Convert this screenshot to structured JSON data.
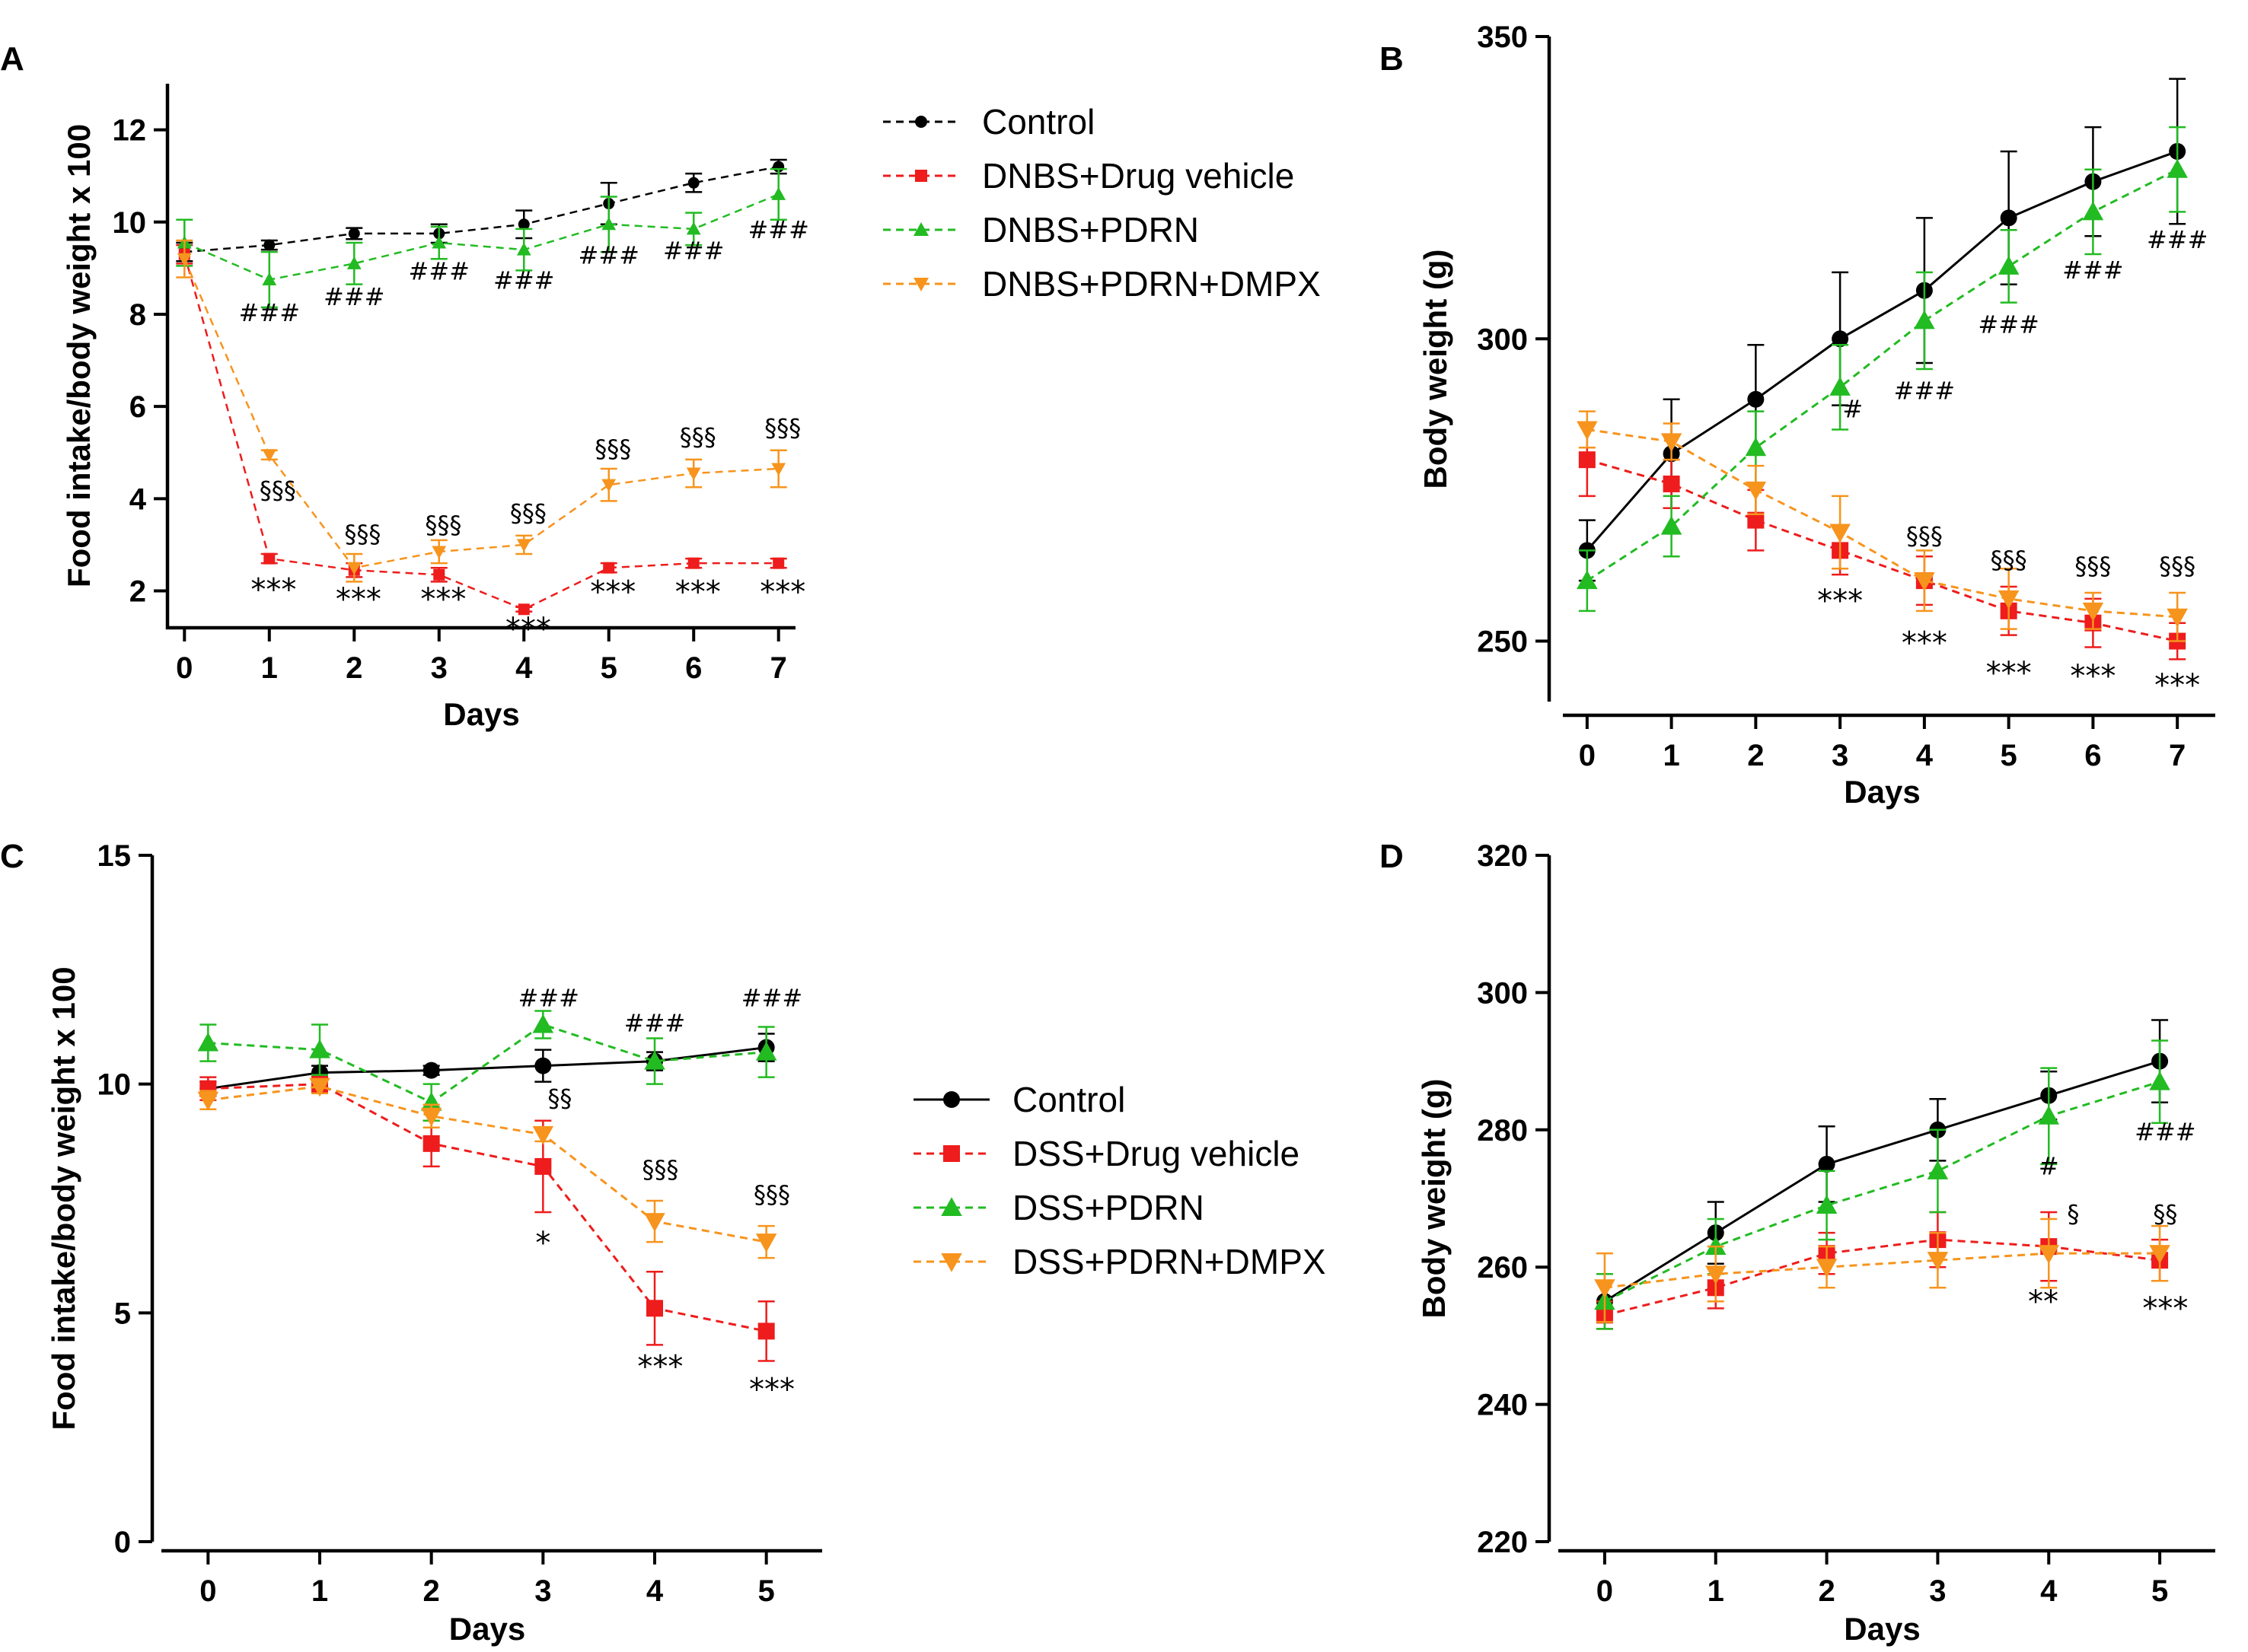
{
  "colors": {
    "control": "#000000",
    "vehicle": "#ee1c1c",
    "pdrn": "#22bb22",
    "dmpx": "#f7941d"
  },
  "chart_data": [
    {
      "panel": "A",
      "type": "line",
      "xlabel": "Days",
      "ylabel": "Food intake/body weight x 100",
      "xlim": [
        -0.2,
        7.2
      ],
      "ylim": [
        1.2,
        13
      ],
      "xticks": [
        0,
        1,
        2,
        3,
        4,
        5,
        6,
        7
      ],
      "yticks": [
        2,
        4,
        6,
        8,
        10,
        12
      ],
      "legend": {
        "position": "top-right"
      },
      "series": [
        {
          "name": "Control",
          "color": "#000000",
          "dash": true,
          "marker": "circle",
          "size": "small",
          "x": [
            0,
            1,
            2,
            3,
            4,
            5,
            6,
            7
          ],
          "y": [
            9.35,
            9.5,
            9.75,
            9.75,
            9.95,
            10.4,
            10.85,
            11.2
          ],
          "err": [
            0.2,
            0.1,
            0.12,
            0.2,
            0.3,
            0.45,
            0.2,
            0.15
          ]
        },
        {
          "name": "DNBS+Drug vehicle",
          "color": "#ee1c1c",
          "dash": true,
          "marker": "square",
          "size": "small",
          "x": [
            0,
            1,
            2,
            3,
            4,
            5,
            6,
            7
          ],
          "y": [
            9.3,
            2.7,
            2.45,
            2.35,
            1.6,
            2.5,
            2.6,
            2.6
          ],
          "err": [
            0.2,
            0.1,
            0.15,
            0.15,
            0.05,
            0.1,
            0.1,
            0.1
          ]
        },
        {
          "name": "DNBS+PDRN",
          "color": "#22bb22",
          "dash": true,
          "marker": "triangle-up",
          "size": "small",
          "x": [
            0,
            1,
            2,
            3,
            4,
            5,
            6,
            7
          ],
          "y": [
            9.55,
            8.75,
            9.1,
            9.55,
            9.4,
            9.95,
            9.85,
            10.6
          ],
          "err": [
            0.5,
            0.6,
            0.45,
            0.35,
            0.45,
            0.6,
            0.35,
            0.55
          ]
        },
        {
          "name": "DNBS+PDRN+DMPX",
          "color": "#f7941d",
          "dash": true,
          "marker": "triangle-down",
          "size": "small",
          "x": [
            0,
            1,
            2,
            3,
            4,
            5,
            6,
            7
          ],
          "y": [
            9.2,
            4.95,
            2.5,
            2.85,
            3.0,
            4.3,
            4.55,
            4.65
          ],
          "err": [
            0.4,
            0.1,
            0.3,
            0.25,
            0.2,
            0.35,
            0.3,
            0.4
          ]
        }
      ],
      "annotations": [
        {
          "text": "###",
          "x": 1,
          "y": 7.85,
          "size": "small"
        },
        {
          "text": "###",
          "x": 2,
          "y": 8.2,
          "size": "small"
        },
        {
          "text": "###",
          "x": 3,
          "y": 8.75,
          "size": "small"
        },
        {
          "text": "###",
          "x": 4,
          "y": 8.55,
          "size": "small"
        },
        {
          "text": "###",
          "x": 5,
          "y": 9.1,
          "size": "small"
        },
        {
          "text": "###",
          "x": 6,
          "y": 9.2,
          "size": "small"
        },
        {
          "text": "###",
          "x": 7,
          "y": 9.65,
          "size": "small"
        },
        {
          "text": "§§§",
          "x": 1.1,
          "y": 4.0,
          "size": "small"
        },
        {
          "text": "§§§",
          "x": 2.1,
          "y": 3.05,
          "size": "small"
        },
        {
          "text": "§§§",
          "x": 3.05,
          "y": 3.25,
          "size": "small"
        },
        {
          "text": "§§§",
          "x": 4.05,
          "y": 3.5,
          "size": "small"
        },
        {
          "text": "§§§",
          "x": 5.05,
          "y": 4.9,
          "size": "small"
        },
        {
          "text": "§§§",
          "x": 6.05,
          "y": 5.15,
          "size": "small"
        },
        {
          "text": "§§§",
          "x": 7.05,
          "y": 5.35,
          "size": "small"
        },
        {
          "text": "***",
          "x": 1.05,
          "y": 1.8,
          "size": "large"
        },
        {
          "text": "***",
          "x": 2.05,
          "y": 1.6,
          "size": "large"
        },
        {
          "text": "***",
          "x": 3.05,
          "y": 1.6,
          "size": "large"
        },
        {
          "text": "***",
          "x": 4.05,
          "y": 0.95,
          "size": "large"
        },
        {
          "text": "***",
          "x": 5.05,
          "y": 1.75,
          "size": "large"
        },
        {
          "text": "***",
          "x": 6.05,
          "y": 1.75,
          "size": "large"
        },
        {
          "text": "***",
          "x": 7.05,
          "y": 1.75,
          "size": "large"
        }
      ]
    },
    {
      "panel": "B",
      "type": "line",
      "xlabel": "Days",
      "ylabel": "Body weight (g)",
      "xlim": [
        -0.45,
        7.45
      ],
      "ylim": [
        240,
        350
      ],
      "xticks": [
        0,
        1,
        2,
        3,
        4,
        5,
        6,
        7
      ],
      "yticks": [
        250,
        300,
        350
      ],
      "legend": null,
      "series": [
        {
          "name": "Control",
          "color": "#000000",
          "dash": false,
          "marker": "circle",
          "size": "large",
          "x": [
            0,
            1,
            2,
            3,
            4,
            5,
            6,
            7
          ],
          "y": [
            265,
            281,
            290,
            300,
            308,
            320,
            326,
            331
          ],
          "err": [
            5,
            9,
            9,
            11,
            12,
            11,
            9,
            12
          ]
        },
        {
          "name": "DNBS+Drug vehicle",
          "color": "#ee1c1c",
          "dash": true,
          "marker": "square",
          "size": "large",
          "x": [
            0,
            1,
            2,
            3,
            4,
            5,
            6,
            7
          ],
          "y": [
            280,
            276,
            270,
            265,
            260,
            255,
            253,
            250
          ],
          "err": [
            6,
            4,
            5,
            4,
            4,
            4,
            4,
            3
          ]
        },
        {
          "name": "DNBS+PDRN",
          "color": "#22bb22",
          "dash": true,
          "marker": "triangle-up",
          "size": "large",
          "x": [
            0,
            1,
            2,
            3,
            4,
            5,
            6,
            7
          ],
          "y": [
            260,
            269,
            282,
            292,
            303,
            312,
            321,
            328
          ],
          "err": [
            5,
            5,
            6,
            7,
            8,
            6,
            7,
            7
          ]
        },
        {
          "name": "DNBS+PDRN+DMPX",
          "color": "#f7941d",
          "dash": true,
          "marker": "triangle-down",
          "size": "large",
          "x": [
            0,
            1,
            2,
            3,
            4,
            5,
            6,
            7
          ],
          "y": [
            285,
            283,
            275,
            268,
            260,
            257,
            255,
            254
          ],
          "err": [
            3,
            3,
            4,
            6,
            5,
            5,
            3,
            4
          ]
        }
      ],
      "annotations": [
        {
          "text": "#",
          "x": 3.15,
          "y": 287,
          "size": "small"
        },
        {
          "text": "###",
          "x": 4,
          "y": 290,
          "size": "small"
        },
        {
          "text": "###",
          "x": 5,
          "y": 301,
          "size": "small"
        },
        {
          "text": "###",
          "x": 6,
          "y": 310,
          "size": "small"
        },
        {
          "text": "###",
          "x": 7,
          "y": 315,
          "size": "small"
        },
        {
          "text": "§§§",
          "x": 4,
          "y": 266,
          "size": "small"
        },
        {
          "text": "§§§",
          "x": 5,
          "y": 262,
          "size": "small"
        },
        {
          "text": "§§§",
          "x": 6,
          "y": 261,
          "size": "small"
        },
        {
          "text": "§§§",
          "x": 7,
          "y": 261,
          "size": "small"
        },
        {
          "text": "***",
          "x": 3,
          "y": 255,
          "size": "large"
        },
        {
          "text": "***",
          "x": 4,
          "y": 248,
          "size": "large"
        },
        {
          "text": "***",
          "x": 5,
          "y": 243,
          "size": "large"
        },
        {
          "text": "***",
          "x": 6,
          "y": 242.5,
          "size": "large"
        },
        {
          "text": "***",
          "x": 7,
          "y": 241,
          "size": "large"
        }
      ]
    },
    {
      "panel": "C",
      "type": "line",
      "xlabel": "Days",
      "ylabel": "Food intake/body weight x 100",
      "xlim": [
        -0.5,
        5.5
      ],
      "ylim": [
        0,
        15
      ],
      "xticks": [
        0,
        1,
        2,
        3,
        4,
        5
      ],
      "yticks": [
        0,
        5,
        10,
        15
      ],
      "legend": {
        "position": "right"
      },
      "series": [
        {
          "name": "Control",
          "color": "#000000",
          "dash": false,
          "marker": "circle",
          "size": "large",
          "x": [
            0,
            1,
            2,
            3,
            4,
            5
          ],
          "y": [
            9.9,
            10.25,
            10.3,
            10.4,
            10.5,
            10.8
          ],
          "err": [
            0.15,
            0.15,
            0.1,
            0.35,
            0.2,
            0.3
          ]
        },
        {
          "name": "DSS+Drug vehicle",
          "color": "#ee1c1c",
          "dash": true,
          "marker": "square",
          "size": "large",
          "x": [
            0,
            1,
            2,
            3,
            4,
            5
          ],
          "y": [
            9.9,
            10.0,
            8.7,
            8.2,
            5.1,
            4.6
          ],
          "err": [
            0.25,
            0.15,
            0.5,
            1.0,
            0.8,
            0.65
          ]
        },
        {
          "name": "DSS+PDRN",
          "color": "#22bb22",
          "dash": true,
          "marker": "triangle-up",
          "size": "large",
          "x": [
            0,
            1,
            2,
            3,
            4,
            5
          ],
          "y": [
            10.9,
            10.75,
            9.6,
            11.3,
            10.5,
            10.7
          ],
          "err": [
            0.4,
            0.55,
            0.4,
            0.3,
            0.5,
            0.55
          ]
        },
        {
          "name": "DSS+PDRN+DMPX",
          "color": "#f7941d",
          "dash": true,
          "marker": "triangle-down",
          "size": "large",
          "x": [
            0,
            1,
            2,
            3,
            4,
            5
          ],
          "y": [
            9.65,
            9.95,
            9.3,
            8.9,
            7.0,
            6.55
          ],
          "err": [
            0.2,
            0.15,
            0.25,
            0.15,
            0.45,
            0.35
          ]
        }
      ],
      "annotations": [
        {
          "text": "###",
          "x": 3.05,
          "y": 11.7,
          "size": "small"
        },
        {
          "text": "###",
          "x": 4.0,
          "y": 11.15,
          "size": "small"
        },
        {
          "text": "###",
          "x": 5.05,
          "y": 11.7,
          "size": "small"
        },
        {
          "text": "§§",
          "x": 3.15,
          "y": 9.5,
          "size": "small"
        },
        {
          "text": "§§§",
          "x": 4.05,
          "y": 7.95,
          "size": "small"
        },
        {
          "text": "§§§",
          "x": 5.05,
          "y": 7.4,
          "size": "small"
        },
        {
          "text": "*",
          "x": 3.0,
          "y": 6.3,
          "size": "large"
        },
        {
          "text": "***",
          "x": 4.05,
          "y": 3.6,
          "size": "large"
        },
        {
          "text": "***",
          "x": 5.05,
          "y": 3.1,
          "size": "large"
        }
      ]
    },
    {
      "panel": "D",
      "type": "line",
      "xlabel": "Days",
      "ylabel": "Body weight (g)",
      "xlim": [
        -0.5,
        5.5
      ],
      "ylim": [
        220,
        320
      ],
      "xticks": [
        0,
        1,
        2,
        3,
        4,
        5
      ],
      "yticks": [
        220,
        240,
        260,
        280,
        300,
        320
      ],
      "legend": null,
      "series": [
        {
          "name": "Control",
          "color": "#000000",
          "dash": false,
          "marker": "circle",
          "size": "large",
          "x": [
            0,
            1,
            2,
            3,
            4,
            5
          ],
          "y": [
            255,
            265,
            275,
            280,
            285,
            290
          ],
          "err": [
            3,
            4.5,
            5.5,
            4.5,
            3.5,
            6
          ]
        },
        {
          "name": "DSS+Drug vehicle",
          "color": "#ee1c1c",
          "dash": true,
          "marker": "square",
          "size": "large",
          "x": [
            0,
            1,
            2,
            3,
            4,
            5
          ],
          "y": [
            253,
            257,
            262,
            264,
            263,
            261
          ],
          "err": [
            2,
            3,
            3,
            4,
            5,
            3
          ]
        },
        {
          "name": "DSS+PDRN",
          "color": "#22bb22",
          "dash": true,
          "marker": "triangle-up",
          "size": "large",
          "x": [
            0,
            1,
            2,
            3,
            4,
            5
          ],
          "y": [
            255,
            263,
            269,
            274,
            282,
            287
          ],
          "err": [
            4,
            4,
            5,
            6,
            7,
            6
          ]
        },
        {
          "name": "DSS+PDRN+DMPX",
          "color": "#f7941d",
          "dash": true,
          "marker": "triangle-down",
          "size": "large",
          "x": [
            0,
            1,
            2,
            3,
            4,
            5
          ],
          "y": [
            257,
            259,
            260,
            261,
            262,
            262
          ],
          "err": [
            5,
            4,
            3,
            4,
            5,
            4
          ]
        }
      ],
      "annotations": [
        {
          "text": "#",
          "x": 4.0,
          "y": 273.5,
          "size": "small"
        },
        {
          "text": "###",
          "x": 5.05,
          "y": 278.5,
          "size": "small"
        },
        {
          "text": "§",
          "x": 4.22,
          "y": 266.5,
          "size": "small"
        },
        {
          "text": "§§",
          "x": 5.05,
          "y": 266.5,
          "size": "small"
        },
        {
          "text": "**",
          "x": 3.95,
          "y": 253.5,
          "size": "large"
        },
        {
          "text": "***",
          "x": 5.05,
          "y": 252.5,
          "size": "large"
        }
      ]
    }
  ]
}
